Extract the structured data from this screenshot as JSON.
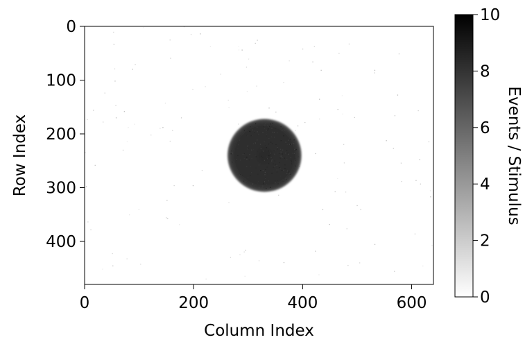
{
  "chart_data": {
    "type": "heatmap",
    "xlabel": "Column Index",
    "ylabel": "Row Index",
    "xlim": [
      0,
      640
    ],
    "ylim": [
      480,
      0
    ],
    "xticks": [
      0,
      200,
      400,
      600
    ],
    "yticks": [
      0,
      100,
      200,
      300,
      400
    ],
    "colormap": "gray_r",
    "colorbar": {
      "label": "Events / Stimulus",
      "range": [
        0,
        10
      ],
      "ticks": [
        0,
        2,
        4,
        6,
        8,
        10
      ],
      "color_low": "#ffffff",
      "color_high": "#000000"
    },
    "features": [
      {
        "shape": "disk",
        "center_column": 330,
        "center_row": 240,
        "radius": 68,
        "value": 8.3
      }
    ],
    "background_value": 0,
    "grid": false
  }
}
